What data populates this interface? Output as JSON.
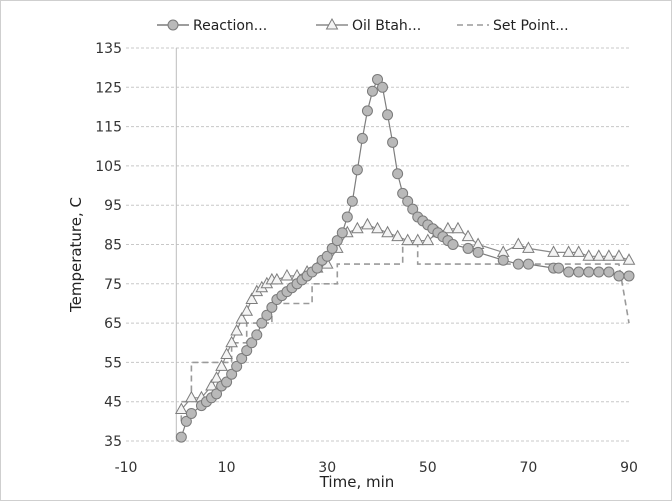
{
  "chart_data": {
    "type": "line",
    "title": "",
    "xlabel": "Time, min",
    "ylabel": "Temperature, C",
    "xlim": [
      -10,
      90
    ],
    "ylim": [
      35,
      135
    ],
    "x_ticks": [
      -10,
      10,
      30,
      50,
      70,
      90
    ],
    "y_ticks": [
      35,
      45,
      55,
      65,
      75,
      85,
      95,
      105,
      115,
      125,
      135
    ],
    "grid": "horizontal dashed",
    "legend_position": "top",
    "series": [
      {
        "name": "Reaction...",
        "color": "#7d7d7d",
        "marker": "circle",
        "x": [
          1,
          2,
          3,
          5,
          6,
          7,
          8,
          9,
          10,
          11,
          12,
          13,
          14,
          15,
          16,
          17,
          18,
          19,
          20,
          21,
          22,
          23,
          24,
          25,
          26,
          27,
          28,
          29,
          30,
          31,
          32,
          33,
          34,
          35,
          36,
          37,
          38,
          39,
          40,
          41,
          42,
          43,
          44,
          45,
          46,
          47,
          48,
          49,
          50,
          51,
          52,
          53,
          54,
          55,
          58,
          60,
          65,
          68,
          70,
          75,
          76,
          78,
          80,
          82,
          84,
          86,
          88,
          90
        ],
        "y": [
          36,
          40,
          42,
          44,
          45,
          46,
          47,
          49,
          50,
          52,
          54,
          56,
          58,
          60,
          62,
          65,
          67,
          69,
          71,
          72,
          73,
          74,
          75,
          76,
          77,
          78,
          79,
          81,
          82,
          84,
          86,
          88,
          92,
          96,
          104,
          112,
          119,
          124,
          127,
          125,
          118,
          111,
          103,
          98,
          96,
          94,
          92,
          91,
          90,
          89,
          88,
          87,
          86,
          85,
          84,
          83,
          81,
          80,
          80,
          79,
          79,
          78,
          78,
          78,
          78,
          78,
          77,
          77
        ]
      },
      {
        "name": "Oil Btah...",
        "color": "#8a8a8a",
        "marker": "triangle",
        "x": [
          1,
          3,
          5,
          7,
          8,
          9,
          10,
          11,
          12,
          13,
          14,
          15,
          16,
          17,
          18,
          19,
          20,
          22,
          24,
          26,
          28,
          30,
          32,
          34,
          36,
          38,
          40,
          42,
          44,
          46,
          48,
          50,
          52,
          54,
          56,
          58,
          60,
          65,
          68,
          70,
          75,
          78,
          80,
          82,
          84,
          86,
          88,
          90
        ],
        "y": [
          43,
          46,
          46,
          49,
          51,
          54,
          57,
          60,
          63,
          66,
          68,
          71,
          73,
          74,
          75,
          76,
          76,
          77,
          77,
          78,
          79,
          80,
          84,
          88,
          89,
          90,
          89,
          88,
          87,
          86,
          86,
          86,
          88,
          89,
          89,
          87,
          85,
          83,
          85,
          84,
          83,
          83,
          83,
          82,
          82,
          82,
          82,
          81
        ]
      },
      {
        "name": "Set Point...",
        "color": "#9a9a9a",
        "marker": "none",
        "x": [
          1,
          1,
          3,
          3,
          11,
          11,
          14,
          14,
          17,
          17,
          19,
          19,
          22,
          22,
          27,
          27,
          32,
          32,
          45,
          45,
          48,
          48,
          88,
          90
        ],
        "y": [
          40,
          45,
          45,
          55,
          55,
          60,
          60,
          65,
          65,
          65,
          65,
          70,
          70,
          70,
          70,
          75,
          75,
          80,
          80,
          85,
          85,
          80,
          80,
          65
        ]
      }
    ]
  }
}
